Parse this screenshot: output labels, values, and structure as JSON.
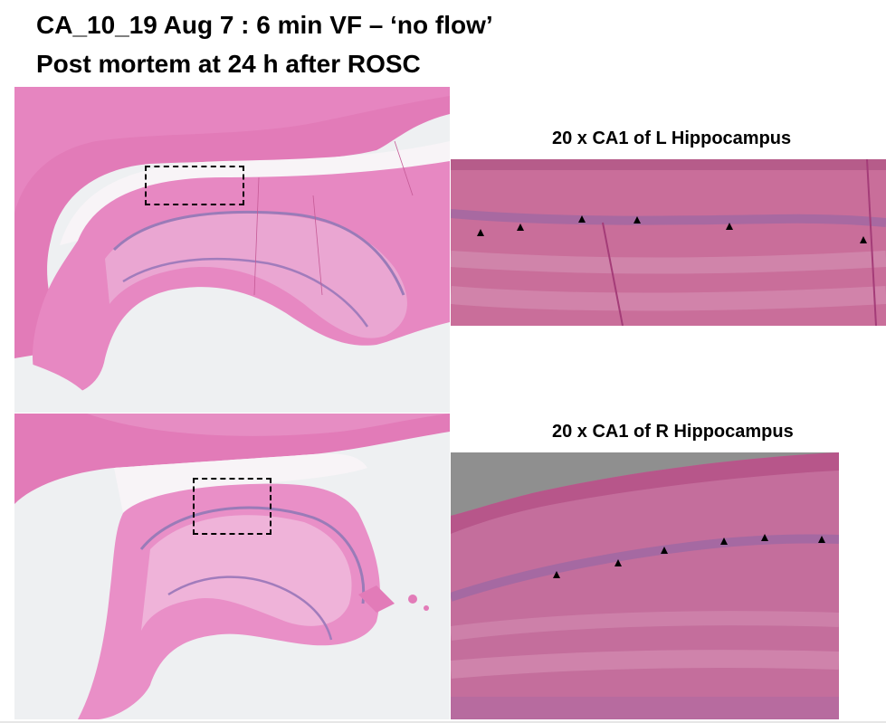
{
  "slide": {
    "title_line1": "CA_10_19 Aug 7 : 6 min VF – ‘no flow’",
    "title_line2": "Post mortem at 24 h after ROSC"
  },
  "panels": {
    "top_right_caption": "20 x CA1 of L Hippocampus",
    "bottom_right_caption": "20 x CA1 of R Hippocampus",
    "left_arrowhead_count": 6,
    "right_arrowhead_count": 6
  },
  "colors": {
    "tissue_pink": "#e27bb8",
    "tissue_light": "#f1bddb",
    "pyramidal_band": "#9a7bb8",
    "background_gray": "#eef0f2"
  }
}
